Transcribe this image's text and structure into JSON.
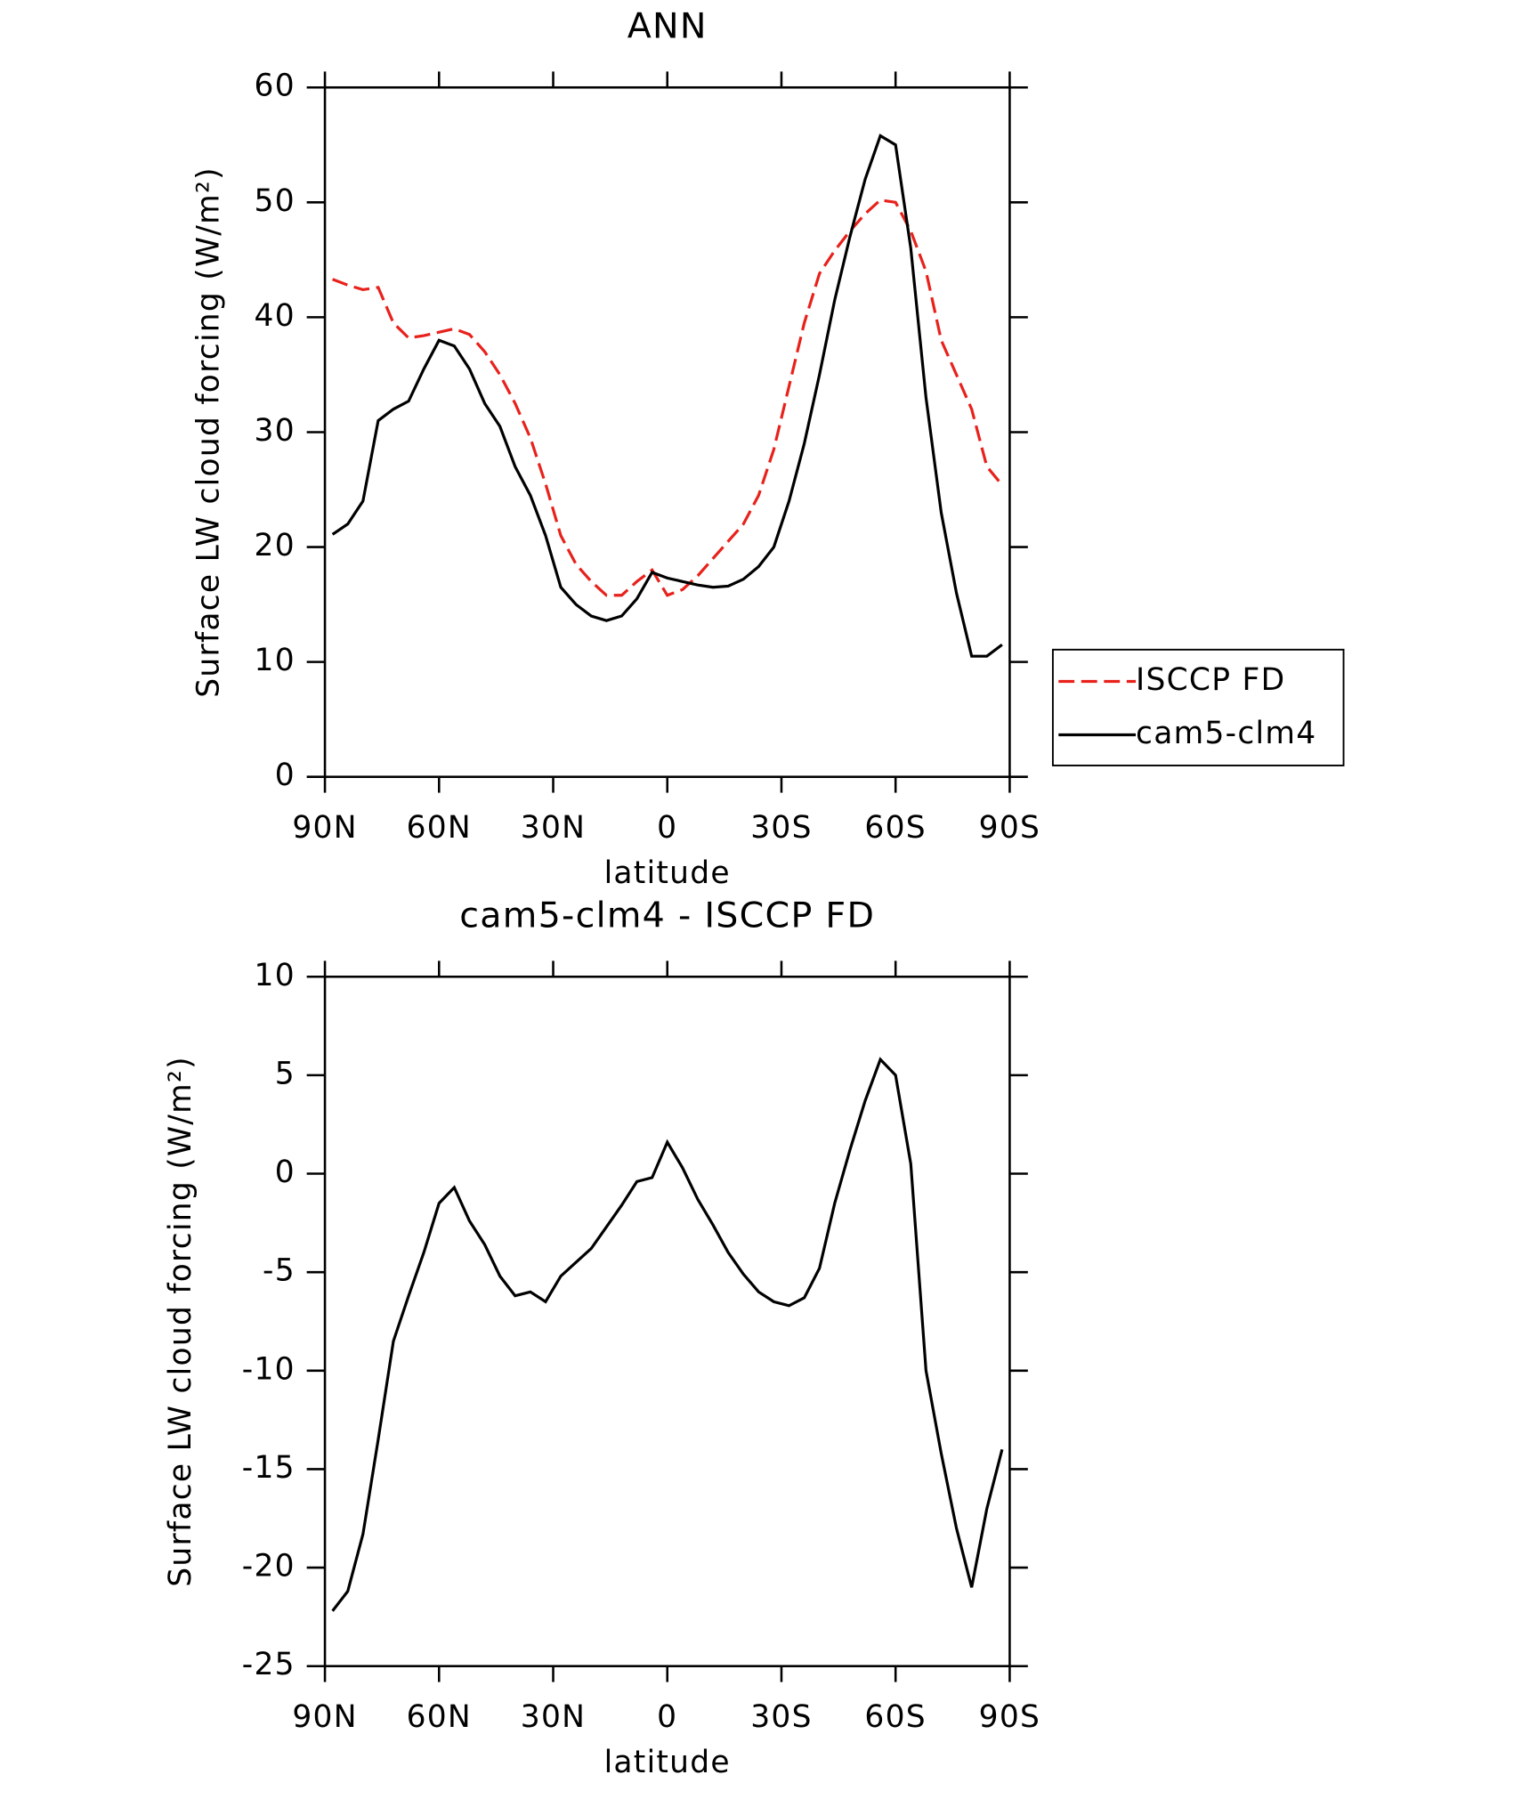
{
  "chart_data": [
    {
      "type": "line",
      "title": "ANN",
      "xlabel": "latitude",
      "ylabel": "Surface LW cloud forcing (W/m²)",
      "xlim": [
        90,
        -90
      ],
      "xticks": [
        {
          "value": 90,
          "label": "90N"
        },
        {
          "value": 60,
          "label": "60N"
        },
        {
          "value": 30,
          "label": "30N"
        },
        0,
        {
          "value": -30,
          "label": "30S"
        },
        {
          "value": -60,
          "label": "60S"
        },
        {
          "value": -90,
          "label": "90S"
        }
      ],
      "ylim": [
        0,
        60
      ],
      "yticks": [
        0,
        10,
        20,
        30,
        40,
        50,
        60
      ],
      "legend": "right",
      "x": [
        88,
        84,
        80,
        76,
        72,
        68,
        64,
        60,
        56,
        52,
        48,
        44,
        40,
        36,
        32,
        28,
        24,
        20,
        16,
        12,
        8,
        4,
        0,
        -4,
        -8,
        -12,
        -16,
        -20,
        -24,
        -28,
        -32,
        -36,
        -40,
        -44,
        -48,
        -52,
        -56,
        -60,
        -64,
        -68,
        -72,
        -76,
        -80,
        -84,
        -88
      ],
      "series": [
        {
          "name": "ISCCP FD",
          "color": "#e8211b",
          "linestyle": "dashed",
          "values": [
            43.3,
            42.8,
            42.4,
            42.6,
            39.5,
            38.2,
            38.4,
            38.7,
            39.0,
            38.5,
            37,
            35,
            32.5,
            29.5,
            25.5,
            21,
            18.5,
            17,
            15.8,
            15.8,
            17,
            18,
            15.8,
            16.3,
            17.5,
            19,
            20.5,
            22,
            24.5,
            28.5,
            34,
            39.5,
            43.8,
            45.8,
            47.5,
            49,
            50.2,
            50,
            47.5,
            44,
            38,
            35,
            32,
            27,
            25.4
          ]
        },
        {
          "name": "cam5-clm4",
          "color": "#000000",
          "linestyle": "solid",
          "values": [
            21.1,
            22,
            24,
            31,
            32,
            32.7,
            35.5,
            38,
            37.5,
            35.5,
            32.5,
            30.5,
            27,
            24.5,
            21,
            16.5,
            15,
            14,
            13.6,
            14,
            15.5,
            17.8,
            17.3,
            17,
            16.7,
            16.5,
            16.6,
            17.2,
            18.3,
            20,
            24,
            29,
            35,
            41.5,
            47,
            52,
            55.8,
            55,
            46,
            33,
            23,
            16,
            10.5,
            10.5,
            11.5
          ]
        }
      ]
    },
    {
      "type": "line",
      "title": "cam5-clm4 - ISCCP FD",
      "xlabel": "latitude",
      "ylabel": "Surface LW cloud forcing (W/m²)",
      "xlim": [
        90,
        -90
      ],
      "xticks": [
        {
          "value": 90,
          "label": "90N"
        },
        {
          "value": 60,
          "label": "60N"
        },
        {
          "value": 30,
          "label": "30N"
        },
        0,
        {
          "value": -30,
          "label": "30S"
        },
        {
          "value": -60,
          "label": "60S"
        },
        {
          "value": -90,
          "label": "90S"
        }
      ],
      "ylim": [
        -25,
        10
      ],
      "yticks": [
        -25,
        -20,
        -15,
        -10,
        -5,
        0,
        5,
        10
      ],
      "x": [
        88,
        84,
        80,
        76,
        72,
        68,
        64,
        60,
        56,
        52,
        48,
        44,
        40,
        36,
        32,
        28,
        24,
        20,
        16,
        12,
        8,
        4,
        0,
        -4,
        -8,
        -12,
        -16,
        -20,
        -24,
        -28,
        -32,
        -36,
        -40,
        -44,
        -48,
        -52,
        -56,
        -60,
        -64,
        -68,
        -72,
        -76,
        -80,
        -84,
        -88
      ],
      "series": [
        {
          "name": "cam5-clm4 - ISCCP FD",
          "color": "#000000",
          "linestyle": "solid",
          "values": [
            -22.2,
            -21.2,
            -18.3,
            -13.5,
            -8.5,
            -6.2,
            -4,
            -1.5,
            -0.7,
            -2.4,
            -3.6,
            -5.2,
            -6.2,
            -6,
            -6.5,
            -5.2,
            -4.5,
            -3.8,
            -2.7,
            -1.6,
            -0.4,
            -0.2,
            1.6,
            0.3,
            -1.3,
            -2.6,
            -4,
            -5.1,
            -6,
            -6.5,
            -6.7,
            -6.3,
            -4.8,
            -1.5,
            1.2,
            3.7,
            5.8,
            5,
            0.5,
            -10,
            -14.2,
            -18,
            -21,
            -17,
            -14
          ]
        }
      ]
    }
  ]
}
